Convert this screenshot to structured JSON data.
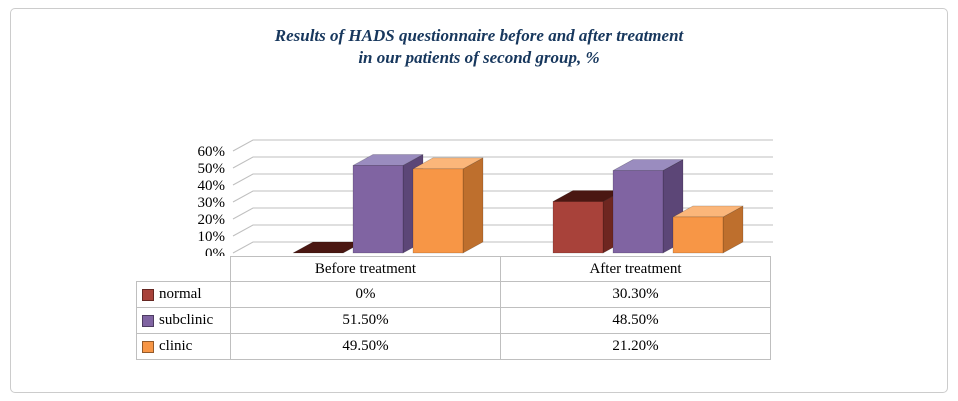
{
  "title": {
    "line1": "Results of HADS questionnaire before and after treatment",
    "line2": "in our patients of second group, %"
  },
  "chart_data": {
    "type": "bar",
    "variant": "3d-clustered-column",
    "categories": [
      "Before treatment",
      "After treatment"
    ],
    "series": [
      {
        "name": "normal",
        "values": [
          0,
          30.3
        ],
        "color": "#A8423A",
        "top_color": "#4A1712",
        "side_color": "#6E2620"
      },
      {
        "name": "subclinic",
        "values": [
          51.5,
          48.5
        ],
        "color": "#8064A2",
        "top_color": "#9A8CBF",
        "side_color": "#5C4677"
      },
      {
        "name": "clinic",
        "values": [
          49.5,
          21.2
        ],
        "color": "#F79646",
        "top_color": "#FBB67A",
        "side_color": "#BE6F2D"
      }
    ],
    "ylim": [
      0,
      60
    ],
    "ytick_step": 10,
    "ytick_labels": [
      "0%",
      "10%",
      "20%",
      "30%",
      "40%",
      "50%",
      "60%"
    ],
    "grid": true,
    "gridline_color": "#BFBFBF",
    "legend_position": "left-of-table"
  },
  "table": {
    "corner": "",
    "col_headers": [
      "Before treatment",
      "After treatment"
    ],
    "rows": [
      {
        "legend": "normal",
        "cells": [
          "0%",
          "30.30%"
        ]
      },
      {
        "legend": "subclinic",
        "cells": [
          "51.50%",
          "48.50%"
        ]
      },
      {
        "legend": "clinic",
        "cells": [
          "49.50%",
          "21.20%"
        ]
      }
    ]
  }
}
